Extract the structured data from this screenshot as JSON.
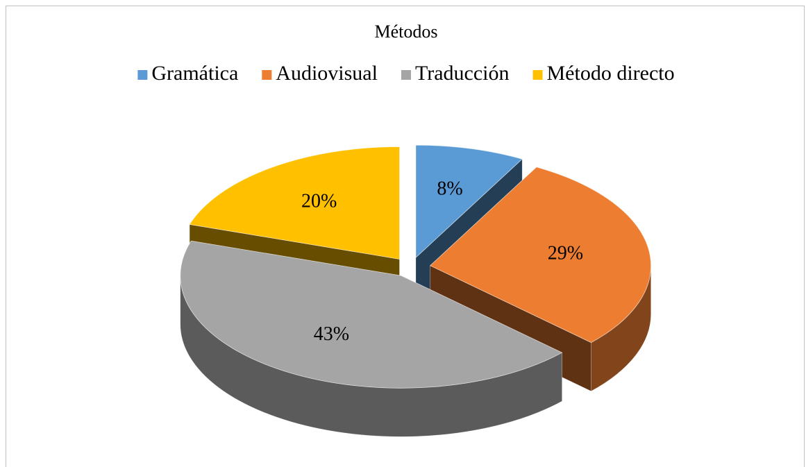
{
  "chart_data": {
    "type": "pie3d",
    "title": "Métodos",
    "categories": [
      "Gramática",
      "Audiovisual",
      "Traducción",
      "Método directo"
    ],
    "values": [
      8,
      29,
      43,
      20
    ],
    "value_labels": [
      "8%",
      "29%",
      "43%",
      "20%"
    ],
    "colors": [
      "#5b9bd5",
      "#ed7d31",
      "#a5a5a5",
      "#ffc000"
    ],
    "legend": "top"
  }
}
